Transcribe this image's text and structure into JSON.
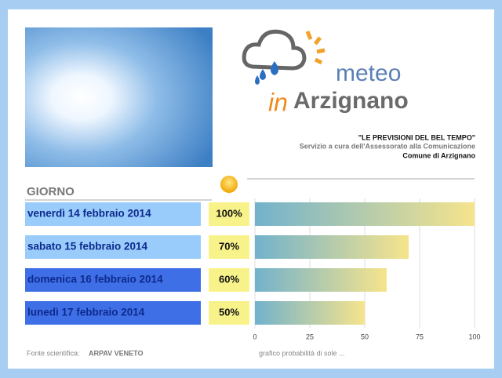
{
  "logo": {
    "word1": "meteo",
    "word2": "in",
    "word3": "Arzignano"
  },
  "header": {
    "line1": "\"LE PREVISIONI DEL BEL TEMPO\"",
    "line2": "Servizio a cura dell'Assessorato alla Comunicazione",
    "line3": "Comune di Arzignano"
  },
  "chart_data": {
    "type": "bar",
    "orientation": "horizontal",
    "category_label": "GIORNO",
    "categories": [
      "venerdì 14 febbraio 2014",
      "sabato 15 febbraio 2014",
      "domenica 16 febbraio 2014",
      "lunedì 17 febbraio 2014"
    ],
    "values": [
      100,
      70,
      60,
      50
    ],
    "value_labels": [
      "100%",
      "70%",
      "60%",
      "50%"
    ],
    "xlim": [
      0,
      100
    ],
    "xticks": [
      0,
      25,
      50,
      75,
      100
    ],
    "grid": true,
    "caption": "grafico probabilità di sole ..."
  },
  "source": {
    "label": "Fonte scientifica:",
    "name": "ARPAV VENETO"
  }
}
